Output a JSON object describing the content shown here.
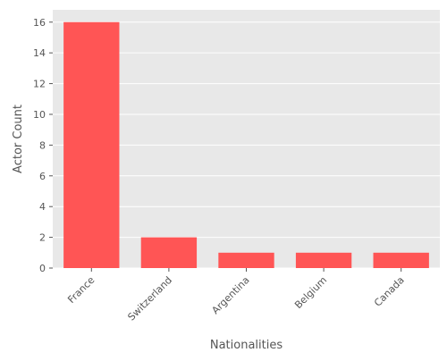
{
  "chart_data": {
    "type": "bar",
    "categories": [
      "France",
      "Switzerland",
      "Argentina",
      "Belgium",
      "Canada"
    ],
    "values": [
      16,
      2,
      1,
      1,
      1
    ],
    "xlabel": "Nationalities",
    "ylabel": "Actor Count",
    "ylim": [
      0,
      16.8
    ],
    "yticks": [
      0,
      2,
      4,
      6,
      8,
      10,
      12,
      14,
      16
    ],
    "grid": true,
    "style": "ggplot",
    "colors": {
      "bar": "#ff5555",
      "panel": "#e8e8e8",
      "grid": "#ffffff",
      "text": "#555555"
    }
  }
}
